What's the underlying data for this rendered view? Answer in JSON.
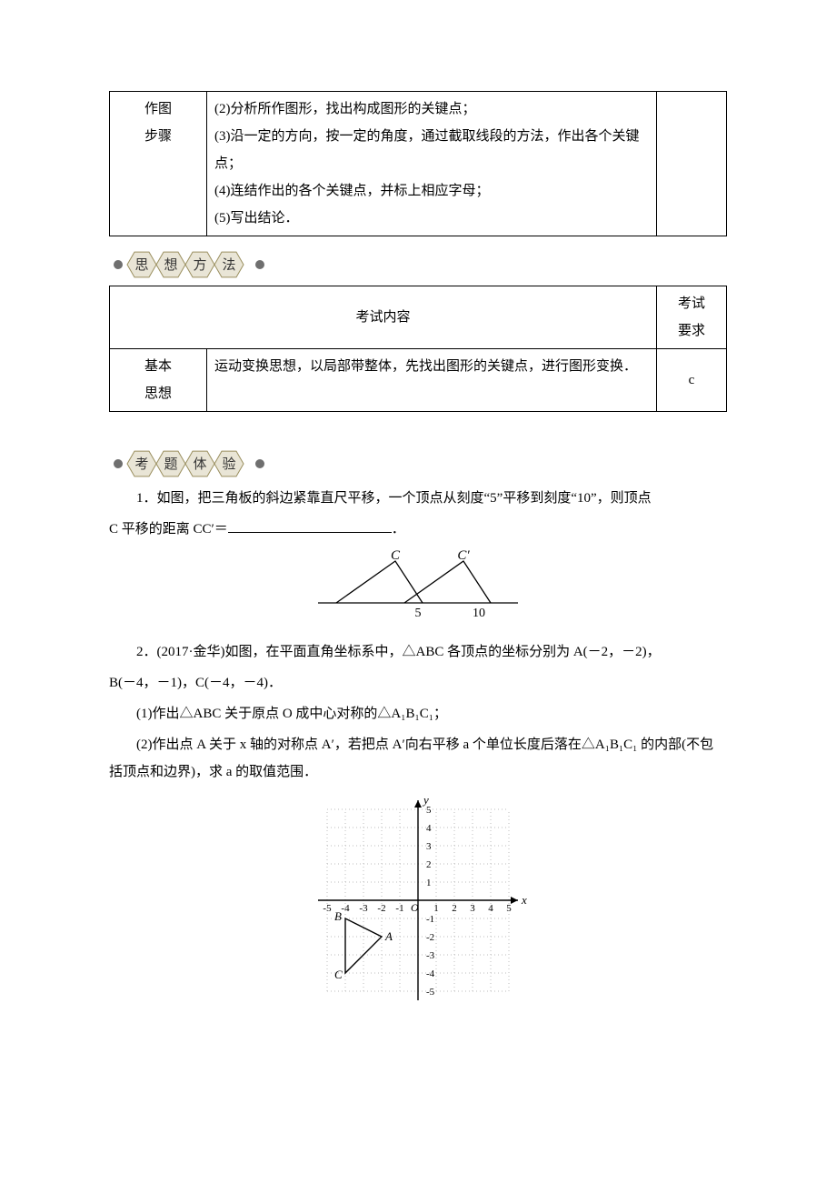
{
  "table1": {
    "row_label_line1": "作图",
    "row_label_line2": "步骤",
    "cell_lines": [
      "(2)分析所作图形，找出构成图形的关键点；",
      "(3)沿一定的方向，按一定的角度，通过截取线段的方法，作出各个关键点；",
      "(4)连结作出的各个关键点，并标上相应字母；",
      "(5)写出结论．"
    ],
    "third_col_empty": ""
  },
  "banner1": {
    "bullet_color": "#6f6f6f",
    "hex_fill": "#e9e5d6",
    "hex_stroke": "#9a8f5f",
    "text_color": "#333333",
    "chars": [
      "思",
      "想",
      "方",
      "法"
    ]
  },
  "table2": {
    "header_content": "考试内容",
    "header_req_l1": "考试",
    "header_req_l2": "要求",
    "row_label_line1": "基本",
    "row_label_line2": "思想",
    "cell_text": "运动变换思想，以局部带整体，先找出图形的关键点，进行图形变换．",
    "req_value": "c"
  },
  "banner2": {
    "bullet_color": "#6f6f6f",
    "hex_fill": "#e9e5d6",
    "hex_stroke": "#9a8f5f",
    "text_color": "#333333",
    "chars": [
      "考",
      "题",
      "体",
      "验"
    ]
  },
  "q1": {
    "line1": "1．如图，把三角板的斜边紧靠直尺平移，一个顶点从刻度“5”平移到刻度“10”，则顶点",
    "line2_prefix": "C 平移的距离 CC′＝",
    "line2_suffix": "．",
    "fig": {
      "label_C": "C",
      "label_Cp": "C′",
      "tick5": "5",
      "tick10": "10",
      "italic": "italic",
      "font_family": "Times New Roman, serif"
    }
  },
  "q2": {
    "intro_a": "2．(2017·金华)如图，在平面直角坐标系中，△ABC 各顶点的坐标分别为 A(－2，－2)，",
    "intro_b": "B(－4，－1)，C(－4，－4)．",
    "part1": "(1)作出△ABC 关于原点 O 成中心对称的△A₁B₁C₁；",
    "part2": "(2)作出点 A 关于 x 轴的对称点 A′，若把点 A′向右平移 a 个单位长度后落在△A₁B₁C₁ 的内部(不包括顶点和边界)，求 a 的取值范围．",
    "fig": {
      "grid_color": "#bdbdbd",
      "axis_color": "#000000",
      "xlabel": "x",
      "ylabel": "y",
      "origin": "O",
      "label_A": "A",
      "label_B": "B",
      "label_C": "C",
      "xticks": [
        "-5",
        "-4",
        "-3",
        "-2",
        "-1",
        "1",
        "2",
        "3",
        "4",
        "5"
      ],
      "yticks_pos": [
        "1",
        "2",
        "3",
        "4",
        "5"
      ],
      "yticks_neg": [
        "-1",
        "-2",
        "-3",
        "-4",
        "-5"
      ],
      "font_family": "Times New Roman, serif"
    }
  }
}
